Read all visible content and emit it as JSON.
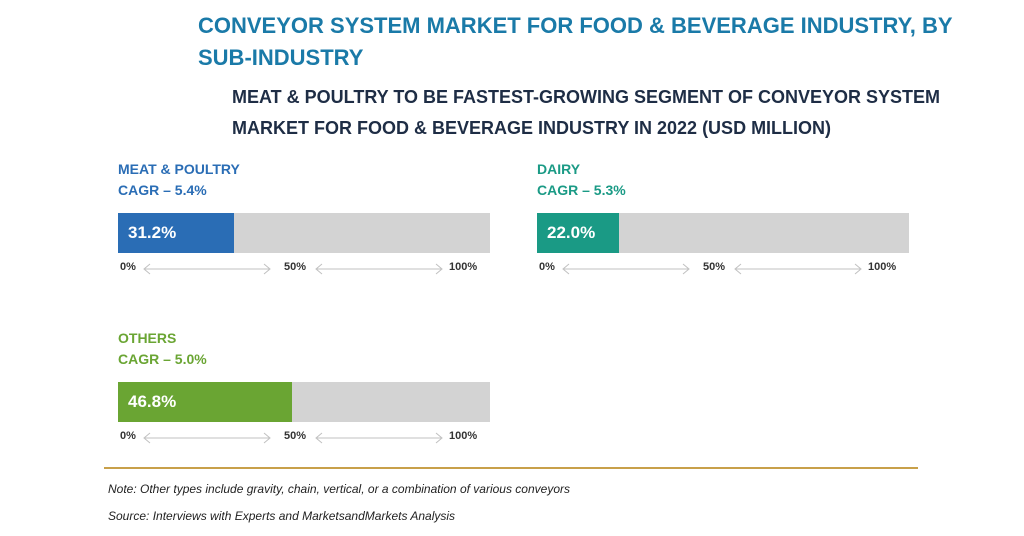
{
  "title": "CONVEYOR SYSTEM MARKET FOR FOOD & BEVERAGE INDUSTRY, BY SUB-INDUSTRY",
  "subtitle": "MEAT & POULTRY TO BE FASTEST-GROWING SEGMENT OF CONVEYOR SYSTEM MARKET FOR FOOD & BEVERAGE INDUSTRY IN 2022 (USD MILLION)",
  "chart_data": {
    "type": "bar",
    "title": "CONVEYOR SYSTEM MARKET FOR FOOD & BEVERAGE INDUSTRY, BY SUB-INDUSTRY",
    "subtitle": "MEAT & POULTRY TO BE FASTEST-GROWING SEGMENT OF CONVEYOR SYSTEM MARKET FOR FOOD & BEVERAGE INDUSTRY IN 2022 (USD MILLION)",
    "xlim": [
      0,
      100
    ],
    "ticks": [
      "0%",
      "50%",
      "100%"
    ],
    "segments": [
      {
        "name": "MEAT & POULTRY",
        "cagr": "CAGR – 5.4%",
        "value": 31.2,
        "label": "31.2%",
        "color": "#2a6db5"
      },
      {
        "name": "DAIRY",
        "cagr": "CAGR – 5.3%",
        "value": 22.0,
        "label": "22.0%",
        "color": "#1a9a85"
      },
      {
        "name": "OTHERS",
        "cagr": "CAGR – 5.0%",
        "value": 46.8,
        "label": "46.8%",
        "color": "#6aa533"
      }
    ],
    "track_color": "#d3d3d3"
  },
  "note": "Note: Other types include gravity, chain, vertical, or a combination of various conveyors",
  "source": "Source: Interviews with Experts and MarketsandMarkets Analysis"
}
